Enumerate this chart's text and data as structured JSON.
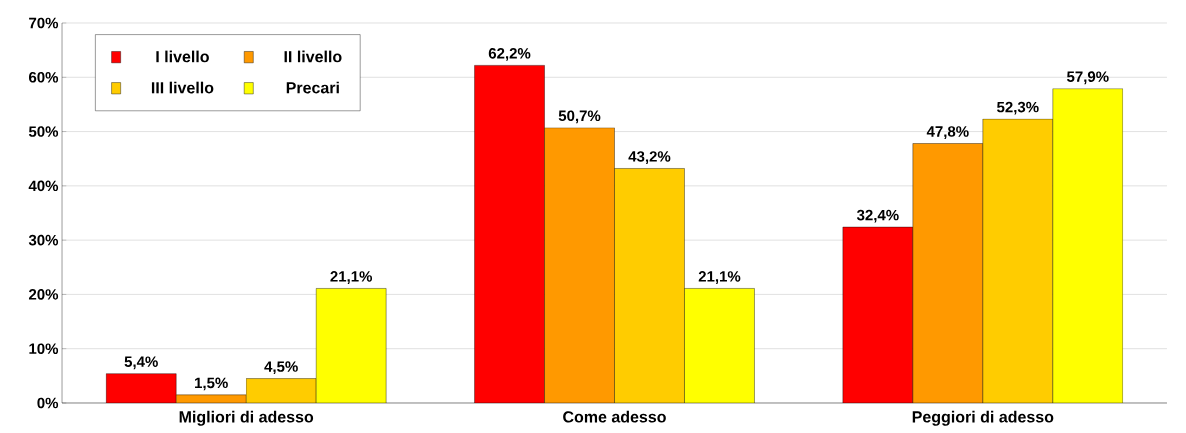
{
  "chart_data": {
    "type": "bar",
    "categories": [
      "Migliori di adesso",
      "Come adesso",
      "Peggiori di adesso"
    ],
    "series": [
      {
        "name": "I livello",
        "color": "#ff0000",
        "values": [
          5.4,
          62.2,
          32.4
        ],
        "value_labels": [
          "5,4%",
          "62,2%",
          "32,4%"
        ]
      },
      {
        "name": "II livello",
        "color": "#ff9900",
        "values": [
          1.5,
          50.7,
          47.8
        ],
        "value_labels": [
          "1,5%",
          "50,7%",
          "47,8%"
        ]
      },
      {
        "name": "III livello",
        "color": "#ffcc00",
        "values": [
          4.5,
          43.2,
          52.3
        ],
        "value_labels": [
          "4,5%",
          "43,2%",
          "52,3%"
        ]
      },
      {
        "name": "Precari",
        "color": "#ffff00",
        "values": [
          21.1,
          21.1,
          57.9
        ],
        "value_labels": [
          "21,1%",
          "21,1%",
          "57,9%"
        ]
      }
    ],
    "ylim": [
      0,
      70
    ],
    "yticks": [
      {
        "value": 0,
        "label": "0%"
      },
      {
        "value": 10,
        "label": "10%"
      },
      {
        "value": 20,
        "label": "20%"
      },
      {
        "value": 30,
        "label": "30%"
      },
      {
        "value": 40,
        "label": "40%"
      },
      {
        "value": 50,
        "label": "50%"
      },
      {
        "value": 60,
        "label": "60%"
      },
      {
        "value": 70,
        "label": "70%"
      }
    ],
    "grid": "y",
    "legend": "top left"
  }
}
